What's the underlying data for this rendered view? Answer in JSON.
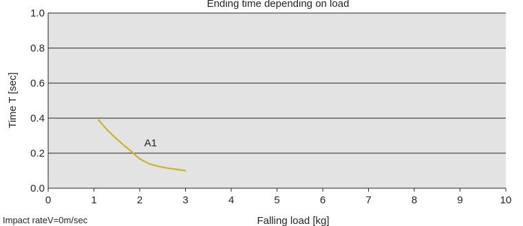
{
  "chart_data": {
    "type": "line",
    "title": "Ending time depending on load",
    "xlabel": "Falling load [kg]",
    "ylabel": "Time T [sec]",
    "xlim": [
      0,
      10
    ],
    "ylim": [
      0.0,
      1.0
    ],
    "x_ticks": [
      "0",
      "1",
      "2",
      "3",
      "4",
      "5",
      "6",
      "7",
      "8",
      "9",
      "10"
    ],
    "y_ticks": [
      "0.0",
      "0.2",
      "0.4",
      "0.6",
      "0.8",
      "1.0"
    ],
    "grid": "horizontal",
    "plot_background": "#e3e3e3",
    "series": [
      {
        "name": "A1",
        "color": "#c8b71b",
        "x": [
          1.1,
          1.3,
          1.5,
          1.7,
          1.8,
          1.9,
          2.0,
          2.2,
          2.4,
          2.6,
          2.8,
          3.0
        ],
        "y": [
          0.39,
          0.33,
          0.28,
          0.235,
          0.215,
          0.19,
          0.168,
          0.14,
          0.125,
          0.115,
          0.108,
          0.1
        ]
      }
    ],
    "annotations": [
      {
        "text": "A1",
        "x": 2.1,
        "y": 0.24
      }
    ],
    "footnote": "Impact rateV=0m/sec"
  }
}
